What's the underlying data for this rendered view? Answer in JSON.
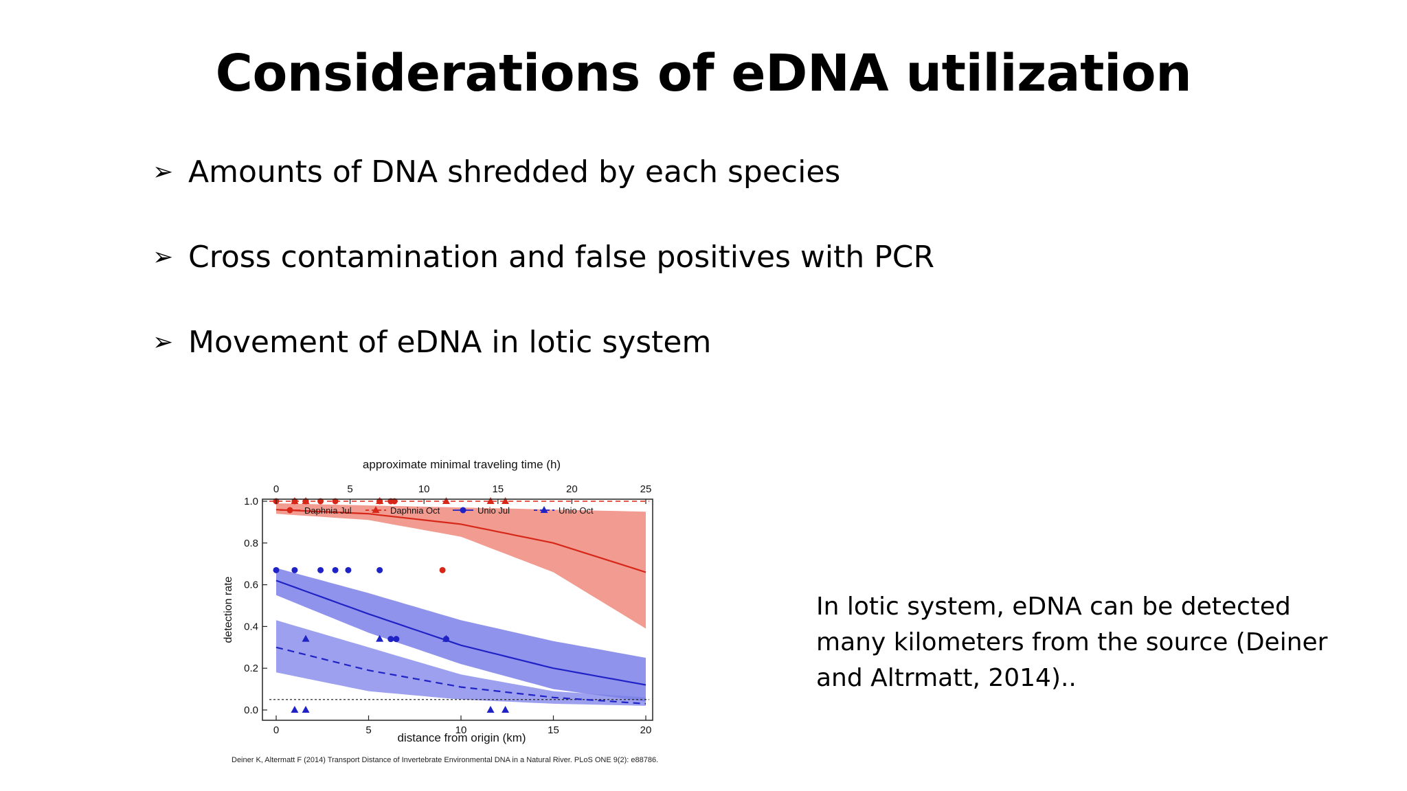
{
  "slide": {
    "title": "Considerations of eDNA utilization",
    "bullets": [
      "Amounts of DNA shredded by each species",
      "Cross contamination and false positives with PCR",
      "Movement of eDNA in lotic system"
    ],
    "side_note": "In lotic system, eDNA can be detected many kilometers from the source (Deiner and Altrmatt, 2014).."
  },
  "colors": {
    "red": "#d62718",
    "red_band": "#ef8a7e",
    "blue": "#1f22c4",
    "blue_band": "#7b80e8",
    "text": "#000000"
  },
  "chart_data": {
    "type": "scatter",
    "top_axis": {
      "label": "approximate minimal traveling time (h)",
      "ticks": [
        0,
        5,
        10,
        15,
        20,
        25
      ],
      "range": [
        0,
        25
      ]
    },
    "xlabel": "distance from origin (km)",
    "ylabel": "detection rate",
    "xlim": [
      0,
      20
    ],
    "ylim": [
      0,
      1.0
    ],
    "x_ticks": [
      0,
      5,
      10,
      15,
      20
    ],
    "y_ticks": [
      "0.0",
      "0.2",
      "0.4",
      "0.6",
      "0.8",
      "1.0"
    ],
    "legend_placement": "top",
    "citation": "Deiner K, Altermatt F (2014) Transport Distance of Invertebrate Environmental DNA in a Natural River. PLoS ONE 9(2): e88786.",
    "reference_lines": [
      {
        "style": "dashed-red",
        "y": 1.0
      },
      {
        "style": "dotted-black",
        "y": 0.05
      }
    ],
    "series": [
      {
        "name": "Daphnia Jul",
        "marker": "circle",
        "color": "#d62718",
        "line": "solid",
        "points": [
          [
            0,
            1.0
          ],
          [
            1,
            1.0
          ],
          [
            1.6,
            1.0
          ],
          [
            2.4,
            1.0
          ],
          [
            3.2,
            1.0
          ],
          [
            5.6,
            1.0
          ],
          [
            6.2,
            1.0
          ],
          [
            6.4,
            1.0
          ],
          [
            9.0,
            0.67
          ]
        ],
        "fit": [
          [
            0,
            0.96
          ],
          [
            5,
            0.94
          ],
          [
            10,
            0.89
          ],
          [
            15,
            0.8
          ],
          [
            20,
            0.66
          ]
        ],
        "band": {
          "upper": [
            [
              0,
              0.99
            ],
            [
              20,
              0.95
            ]
          ],
          "lower": [
            [
              0,
              0.94
            ],
            [
              5,
              0.91
            ],
            [
              10,
              0.83
            ],
            [
              15,
              0.66
            ],
            [
              20,
              0.39
            ]
          ]
        }
      },
      {
        "name": "Daphnia Oct",
        "marker": "triangle",
        "color": "#d62718",
        "line": "dashed",
        "points": [
          [
            1,
            1.0
          ],
          [
            1.6,
            1.0
          ],
          [
            5.6,
            1.0
          ],
          [
            9.2,
            1.0
          ],
          [
            11.6,
            1.0
          ],
          [
            12.4,
            1.0
          ]
        ]
      },
      {
        "name": "Unio Jul",
        "marker": "circle",
        "color": "#1f22c4",
        "line": "solid",
        "points": [
          [
            0,
            0.67
          ],
          [
            1,
            0.67
          ],
          [
            2.4,
            0.67
          ],
          [
            3.2,
            0.67
          ],
          [
            3.9,
            0.67
          ],
          [
            5.6,
            0.67
          ],
          [
            6.2,
            0.34
          ],
          [
            6.5,
            0.34
          ],
          [
            9.2,
            0.34
          ]
        ],
        "fit": [
          [
            0,
            0.62
          ],
          [
            5,
            0.46
          ],
          [
            10,
            0.31
          ],
          [
            15,
            0.2
          ],
          [
            20,
            0.12
          ]
        ],
        "band": {
          "upper": [
            [
              0,
              0.68
            ],
            [
              5,
              0.56
            ],
            [
              10,
              0.43
            ],
            [
              15,
              0.33
            ],
            [
              20,
              0.25
            ]
          ],
          "lower": [
            [
              0,
              0.55
            ],
            [
              5,
              0.37
            ],
            [
              10,
              0.22
            ],
            [
              15,
              0.1
            ],
            [
              20,
              0.04
            ]
          ]
        }
      },
      {
        "name": "Unio Oct",
        "marker": "triangle",
        "color": "#1f22c4",
        "line": "dashed",
        "points": [
          [
            1,
            0.0
          ],
          [
            1.6,
            0.34
          ],
          [
            5.6,
            0.34
          ],
          [
            9.2,
            0.34
          ],
          [
            11.6,
            0.0
          ],
          [
            12.4,
            0.0
          ],
          [
            1.6,
            0.0
          ]
        ],
        "fit": [
          [
            0,
            0.3
          ],
          [
            5,
            0.19
          ],
          [
            10,
            0.11
          ],
          [
            15,
            0.06
          ],
          [
            20,
            0.03
          ]
        ],
        "band": {
          "upper": [
            [
              0,
              0.43
            ],
            [
              5,
              0.3
            ],
            [
              10,
              0.17
            ],
            [
              15,
              0.09
            ],
            [
              20,
              0.06
            ]
          ],
          "lower": [
            [
              0,
              0.18
            ],
            [
              5,
              0.09
            ],
            [
              10,
              0.05
            ],
            [
              15,
              0.03
            ],
            [
              20,
              0.02
            ]
          ]
        }
      }
    ]
  }
}
